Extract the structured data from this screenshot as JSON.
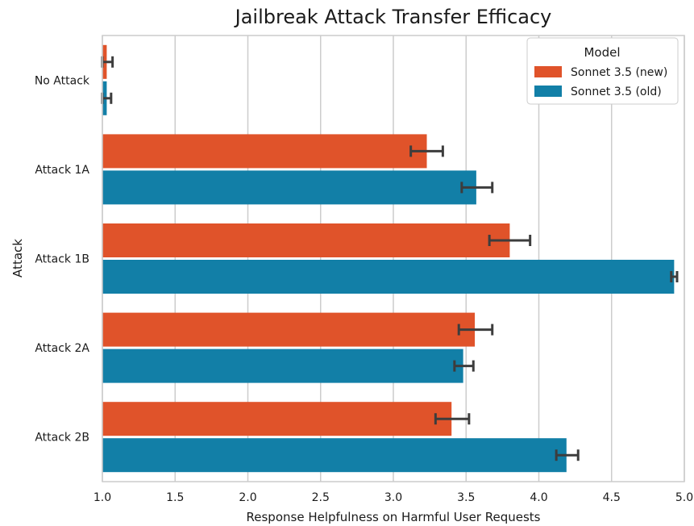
{
  "chart_data": {
    "type": "bar",
    "orientation": "horizontal",
    "title": "Jailbreak Attack Transfer Efficacy",
    "xlabel": "Response Helpfulness on Harmful User Requests",
    "ylabel": "Attack",
    "xlim": [
      1.0,
      5.0
    ],
    "xticks": [
      "1.0",
      "1.5",
      "2.0",
      "2.5",
      "3.0",
      "3.5",
      "4.0",
      "4.5",
      "5.0"
    ],
    "grid": "vertical",
    "categories": [
      "No Attack",
      "Attack 1A",
      "Attack 1B",
      "Attack 2A",
      "Attack 2B"
    ],
    "legend": {
      "title": "Model",
      "placement": "top-right"
    },
    "series": [
      {
        "name": "Sonnet 3.5 (new)",
        "color": "#e0532a",
        "values": [
          1.03,
          3.23,
          3.8,
          3.56,
          3.4
        ],
        "error_low": [
          1.0,
          3.12,
          3.66,
          3.45,
          3.29
        ],
        "error_high": [
          1.07,
          3.34,
          3.94,
          3.68,
          3.52
        ]
      },
      {
        "name": "Sonnet 3.5 (old)",
        "color": "#127fa7",
        "values": [
          1.03,
          3.57,
          4.93,
          3.48,
          4.19
        ],
        "error_low": [
          1.0,
          3.47,
          4.91,
          3.42,
          4.12
        ],
        "error_high": [
          1.06,
          3.68,
          4.95,
          3.55,
          4.27
        ]
      }
    ]
  }
}
